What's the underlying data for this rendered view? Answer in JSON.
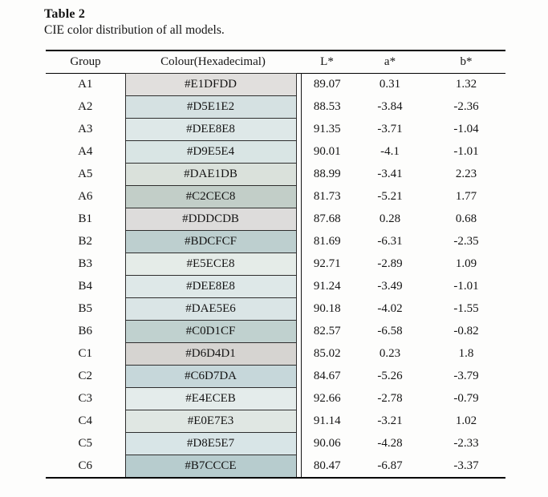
{
  "title": "Table 2",
  "caption": "CIE color distribution of all models.",
  "colors": {
    "background": "#fdfdfc",
    "rule": "#000000",
    "swatch_border": "#2e2e2e",
    "text": "#141414"
  },
  "table": {
    "columns": [
      "Group",
      "Colour(Hexadecimal)",
      "L*",
      "a*",
      "b*"
    ],
    "rows": [
      {
        "group": "A1",
        "hex": "#E1DFDD",
        "L": "89.07",
        "a": "0.31",
        "b": "1.32"
      },
      {
        "group": "A2",
        "hex": "#D5E1E2",
        "L": "88.53",
        "a": "-3.84",
        "b": "-2.36"
      },
      {
        "group": "A3",
        "hex": "#DEE8E8",
        "L": "91.35",
        "a": "-3.71",
        "b": "-1.04"
      },
      {
        "group": "A4",
        "hex": "#D9E5E4",
        "L": "90.01",
        "a": "-4.1",
        "b": "-1.01"
      },
      {
        "group": "A5",
        "hex": "#DAE1DB",
        "L": "88.99",
        "a": "-3.41",
        "b": "2.23"
      },
      {
        "group": "A6",
        "hex": "#C2CEC8",
        "L": "81.73",
        "a": "-5.21",
        "b": "1.77"
      },
      {
        "group": "B1",
        "hex": "#DDDCDB",
        "L": "87.68",
        "a": "0.28",
        "b": "0.68"
      },
      {
        "group": "B2",
        "hex": "#BDCFCF",
        "L": "81.69",
        "a": "-6.31",
        "b": "-2.35"
      },
      {
        "group": "B3",
        "hex": "#E5ECE8",
        "L": "92.71",
        "a": "-2.89",
        "b": "1.09"
      },
      {
        "group": "B4",
        "hex": "#DEE8E8",
        "L": "91.24",
        "a": "-3.49",
        "b": "-1.01"
      },
      {
        "group": "B5",
        "hex": "#DAE5E6",
        "L": "90.18",
        "a": "-4.02",
        "b": "-1.55"
      },
      {
        "group": "B6",
        "hex": "#C0D1CF",
        "L": "82.57",
        "a": "-6.58",
        "b": "-0.82"
      },
      {
        "group": "C1",
        "hex": "#D6D4D1",
        "L": "85.02",
        "a": "0.23",
        "b": "1.8"
      },
      {
        "group": "C2",
        "hex": "#C6D7DA",
        "L": "84.67",
        "a": "-5.26",
        "b": "-3.79"
      },
      {
        "group": "C3",
        "hex": "#E4ECEB",
        "L": "92.66",
        "a": "-2.78",
        "b": "-0.79"
      },
      {
        "group": "C4",
        "hex": "#E0E7E3",
        "L": "91.14",
        "a": "-3.21",
        "b": "1.02"
      },
      {
        "group": "C5",
        "hex": "#D8E5E7",
        "L": "90.06",
        "a": "-4.28",
        "b": "-2.33"
      },
      {
        "group": "C6",
        "hex": "#B7CCCE",
        "L": "80.47",
        "a": "-6.87",
        "b": "-3.37"
      }
    ]
  }
}
